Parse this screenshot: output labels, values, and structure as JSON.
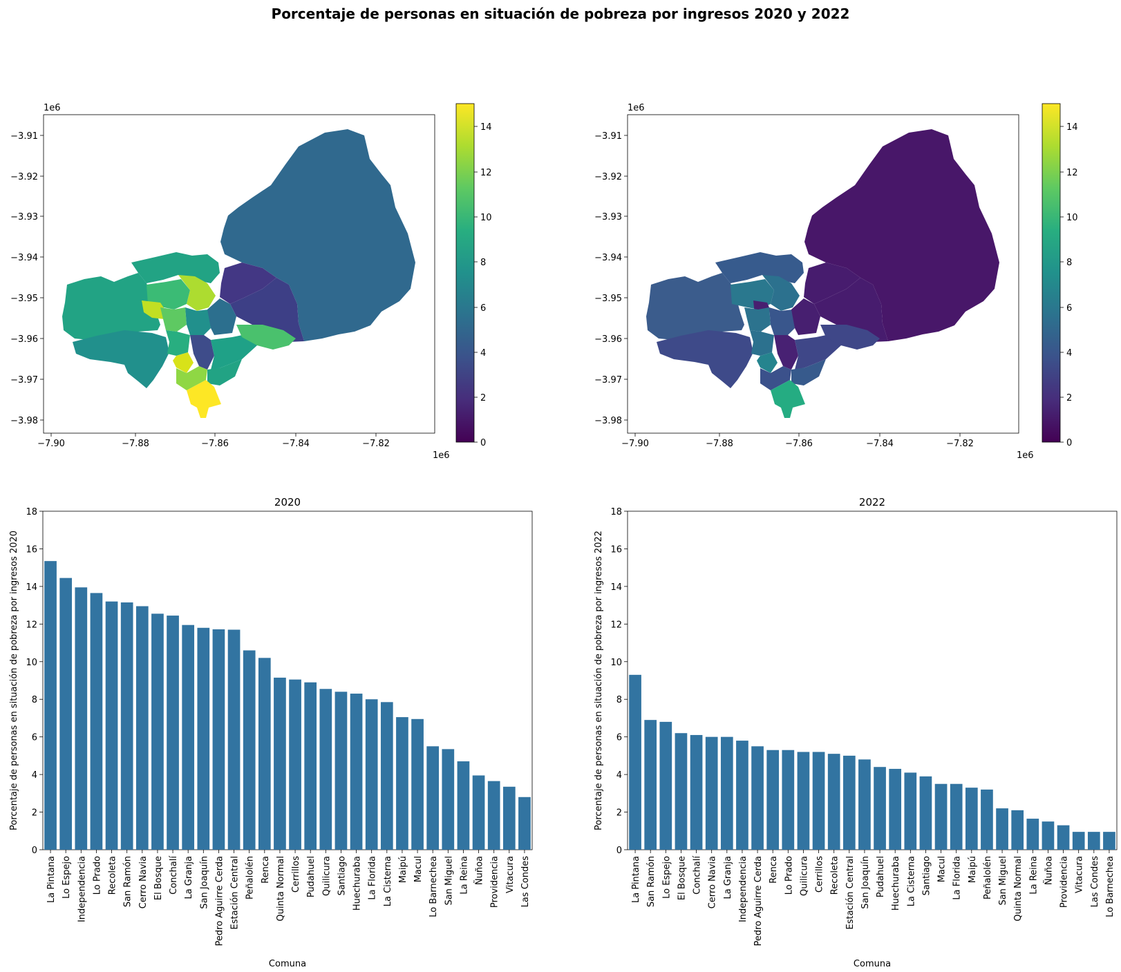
{
  "suptitle": "Porcentaje de personas en situación de pobreza por ingresos 2020 y 2022",
  "chart_data": [
    {
      "type": "choropleth",
      "colormap": "viridis",
      "colorbar": {
        "range": [
          0,
          15
        ],
        "ticks": [
          "0",
          "2",
          "4",
          "6",
          "8",
          "10",
          "12",
          "14"
        ]
      },
      "x_ticks": [
        "−7.90",
        "−7.88",
        "−7.86",
        "−7.84",
        "−7.82"
      ],
      "y_ticks": [
        "−3.91",
        "−3.92",
        "−3.93",
        "−3.94",
        "−3.95",
        "−3.96",
        "−3.97",
        "−3.98"
      ],
      "x_offset": "1e6",
      "y_offset": "1e6"
    },
    {
      "type": "choropleth",
      "colormap": "viridis",
      "colorbar": {
        "range": [
          0,
          15
        ],
        "ticks": [
          "0",
          "2",
          "4",
          "6",
          "8",
          "10",
          "12",
          "14"
        ]
      },
      "x_ticks": [
        "−7.90",
        "−7.88",
        "−7.86",
        "−7.84",
        "−7.82"
      ],
      "y_ticks": [
        "−3.91",
        "−3.92",
        "−3.93",
        "−3.94",
        "−3.95",
        "−3.96",
        "−3.97",
        "−3.98"
      ],
      "x_offset": "1e6",
      "y_offset": "1e6"
    },
    {
      "type": "bar",
      "title": "2020",
      "xlabel": "Comuna",
      "ylabel": "Porcentaje de personas en situación de pobreza por ingresos 2020",
      "ylim": [
        0,
        18
      ],
      "yticks": [
        0,
        2,
        4,
        6,
        8,
        10,
        12,
        14,
        16,
        18
      ],
      "color": "#3274a1",
      "categories": [
        "La Pintana",
        "Lo Espejo",
        "Independencia",
        "Lo Prado",
        "Recoleta",
        "San Ramón",
        "Cerro Navia",
        "El Bosque",
        "Conchalí",
        "La Granja",
        "San Joaquín",
        "Pedro Aguirre Cerda",
        "Estación Central",
        "Peñalolén",
        "Renca",
        "Quinta Normal",
        "Cerrillos",
        "Pudahuel",
        "Quilicura",
        "Santiago",
        "Huechuraba",
        "La Florida",
        "La Cisterna",
        "Maipú",
        "Macul",
        "Lo Barnechea",
        "San Miguel",
        "La Reina",
        "Ñuñoa",
        "Providencia",
        "Vitacura",
        "Las Condes"
      ],
      "values": [
        15.35,
        14.45,
        13.95,
        13.65,
        13.2,
        13.15,
        12.95,
        12.55,
        12.45,
        11.95,
        11.8,
        11.72,
        11.7,
        10.6,
        10.2,
        9.15,
        9.05,
        8.9,
        8.55,
        8.4,
        8.3,
        8.0,
        7.85,
        7.05,
        6.95,
        5.5,
        5.35,
        4.7,
        3.95,
        3.65,
        3.35,
        2.8
      ]
    },
    {
      "type": "bar",
      "title": "2022",
      "xlabel": "Comuna",
      "ylabel": "Porcentaje de personas en situación de pobreza por ingresos 2022",
      "ylim": [
        0,
        18
      ],
      "yticks": [
        0,
        2,
        4,
        6,
        8,
        10,
        12,
        14,
        16,
        18
      ],
      "color": "#3274a1",
      "categories": [
        "La Pintana",
        "San Ramón",
        "Lo Espejo",
        "El Bosque",
        "Conchalí",
        "Cerro Navia",
        "La Granja",
        "Independencia",
        "Pedro Aguirre Cerda",
        "Renca",
        "Lo Prado",
        "Quilicura",
        "Cerrillos",
        "Recoleta",
        "Estación Central",
        "San Joaquín",
        "Pudahuel",
        "Huechuraba",
        "La Cisterna",
        "Santiago",
        "Macul",
        "La Florida",
        "Maipú",
        "Peñalolén",
        "San Miguel",
        "Quinta Normal",
        "La Reina",
        "Ñuñoa",
        "Providencia",
        "Vitacura",
        "Las Condes",
        "Lo Barnechea"
      ],
      "values": [
        9.3,
        6.9,
        6.8,
        6.2,
        6.1,
        6.0,
        6.0,
        5.8,
        5.5,
        5.3,
        5.3,
        5.2,
        5.2,
        5.1,
        5.0,
        4.8,
        4.4,
        4.3,
        4.1,
        3.9,
        3.5,
        3.5,
        3.3,
        3.2,
        2.2,
        2.1,
        1.65,
        1.5,
        1.3,
        0.95,
        0.95,
        0.95
      ]
    }
  ]
}
